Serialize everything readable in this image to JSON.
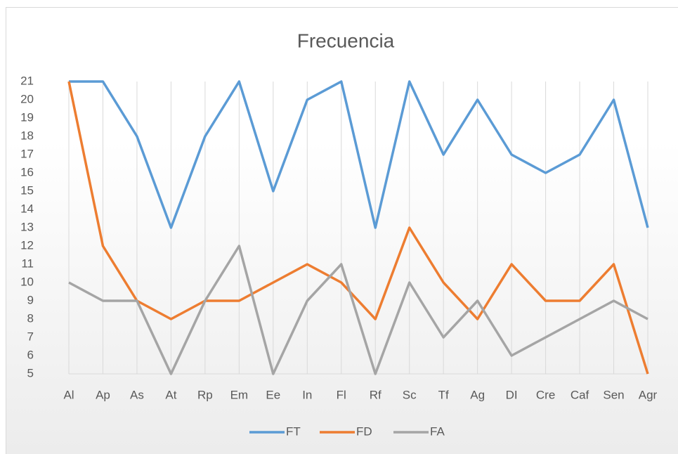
{
  "chart_data": {
    "type": "line",
    "title": "Frecuencia",
    "categories": [
      "Al",
      "Ap",
      "As",
      "At",
      "Rp",
      "Em",
      "Ee",
      "In",
      "Fl",
      "Rf",
      "Sc",
      "Tf",
      "Ag",
      "DI",
      "Cre",
      "Caf",
      "Sen",
      "Agr"
    ],
    "series": [
      {
        "name": "FT",
        "color": "#5b9bd5",
        "values": [
          21,
          21,
          18,
          13,
          18,
          21,
          15,
          20,
          21,
          13,
          21,
          17,
          20,
          17,
          16,
          17,
          20,
          13
        ]
      },
      {
        "name": "FD",
        "color": "#ed7d31",
        "values": [
          21,
          12,
          9,
          8,
          9,
          9,
          10,
          11,
          10,
          8,
          13,
          10,
          8,
          11,
          9,
          9,
          11,
          5
        ]
      },
      {
        "name": "FA",
        "color": "#a5a5a5",
        "values": [
          10,
          9,
          9,
          5,
          9,
          12,
          5,
          9,
          11,
          5,
          10,
          7,
          9,
          6,
          7,
          8,
          9,
          8
        ]
      }
    ],
    "ylim": [
      5,
      21
    ],
    "yticks": [
      5,
      6,
      7,
      8,
      9,
      10,
      11,
      12,
      13,
      14,
      15,
      16,
      17,
      18,
      19,
      20,
      21
    ],
    "grid": true,
    "legend": "bottom"
  }
}
